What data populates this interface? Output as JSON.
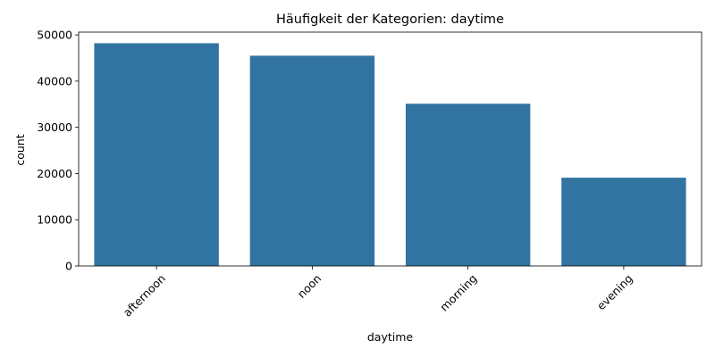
{
  "chart_data": {
    "type": "bar",
    "title": "Häufigkeit der Kategorien: daytime",
    "xlabel": "daytime",
    "ylabel": "count",
    "categories": [
      "afternoon",
      "noon",
      "morning",
      "evening"
    ],
    "values": [
      48200,
      45500,
      35100,
      19100
    ],
    "ylim": [
      0,
      50600
    ],
    "yticks": [
      0,
      10000,
      20000,
      30000,
      40000,
      50000
    ],
    "bar_color": "#3274a1",
    "grid": false,
    "legend": "none",
    "xtick_rotation": 45
  }
}
